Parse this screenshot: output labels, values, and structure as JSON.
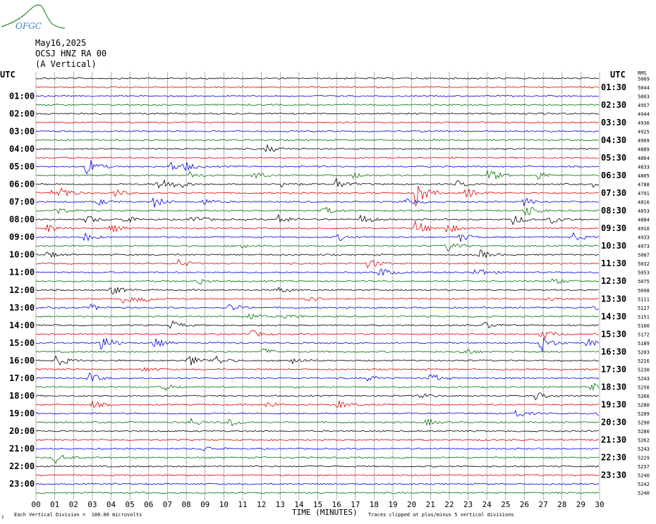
{
  "logo": {
    "text": "OFGC",
    "colors": {
      "text": "#3d7fc4",
      "mountain": "#2f8a3a"
    }
  },
  "header": {
    "date": "May16,2025",
    "station": "OCSJ HNZ RA 00",
    "component": "(A Vertical)"
  },
  "left_axis": {
    "title": "UTC",
    "labels": [
      "01:00",
      "02:00",
      "03:00",
      "04:00",
      "05:00",
      "06:00",
      "07:00",
      "08:00",
      "09:00",
      "10:00",
      "11:00",
      "12:00",
      "13:00",
      "14:00",
      "15:00",
      "16:00",
      "17:00",
      "18:00",
      "19:00",
      "20:00",
      "21:00",
      "22:00",
      "23:00"
    ]
  },
  "right_axis": {
    "title": "UTC",
    "labels": [
      "01:30",
      "02:30",
      "03:30",
      "04:30",
      "05:30",
      "06:30",
      "07:30",
      "08:30",
      "09:30",
      "10:30",
      "11:30",
      "12:30",
      "13:30",
      "14:30",
      "15:30",
      "16:30",
      "17:30",
      "18:30",
      "19:30",
      "20:30",
      "21:30",
      "22:30",
      "23:30"
    ],
    "rms_header": "RMS",
    "rms_values": [
      "5069",
      "5044",
      "5003",
      "4957",
      "4944",
      "4936",
      "4925",
      "4909",
      "4889",
      "4864",
      "4833",
      "4805",
      "4788",
      "4791",
      "4816",
      "4853",
      "4884",
      "4910",
      "4933",
      "4973",
      "5007",
      "5032",
      "5053",
      "5075",
      "5098",
      "5111",
      "5127",
      "5151",
      "5160",
      "5172",
      "5189",
      "5203",
      "5216",
      "5230",
      "5243",
      "5256",
      "5266",
      "5280",
      "5289",
      "5290",
      "5280",
      "5262",
      "5243",
      "5229",
      "5237",
      "5240",
      "5242",
      "5240"
    ]
  },
  "x_axis": {
    "title": "TIME (MINUTES)",
    "ticks": [
      "00",
      "01",
      "02",
      "03",
      "04",
      "05",
      "06",
      "07",
      "08",
      "09",
      "10",
      "11",
      "12",
      "13",
      "14",
      "15",
      "16",
      "17",
      "18",
      "19",
      "20",
      "21",
      "22",
      "23",
      "24",
      "25",
      "26",
      "27",
      "28",
      "29",
      "30"
    ]
  },
  "footer": {
    "scale_note": "Each Vertical Division =  100.00 microvolts",
    "clip_note": "Traces clipped at plus/minus 5 vertical divisions",
    "corner_mark": "z"
  },
  "colors": {
    "trace_cycle": [
      "#000000",
      "#e00000",
      "#0000e0",
      "#007000"
    ],
    "grid": "#808080",
    "background": "#ffffff"
  },
  "chart_data": {
    "type": "helicorder",
    "traces_per_hour": 2,
    "minutes_per_trace": 30,
    "trace_count": 48,
    "events": [
      {
        "trace": 8,
        "minute": 12.3,
        "amp": 6
      },
      {
        "trace": 10,
        "minute": 2.7,
        "amp": 14
      },
      {
        "trace": 10,
        "minute": 7.2,
        "amp": 8
      },
      {
        "trace": 10,
        "minute": 8.0,
        "amp": 5
      },
      {
        "trace": 11,
        "minute": 8.1,
        "amp": 6
      },
      {
        "trace": 11,
        "minute": 11.6,
        "amp": 6
      },
      {
        "trace": 11,
        "minute": 16.9,
        "amp": 4
      },
      {
        "trace": 11,
        "minute": 24.1,
        "amp": 10
      },
      {
        "trace": 11,
        "minute": 26.7,
        "amp": 6
      },
      {
        "trace": 12,
        "minute": 6.5,
        "amp": 11
      },
      {
        "trace": 12,
        "minute": 7.4,
        "amp": 9
      },
      {
        "trace": 12,
        "minute": 13.1,
        "amp": 6
      },
      {
        "trace": 12,
        "minute": 16.0,
        "amp": 8
      },
      {
        "trace": 12,
        "minute": 22.4,
        "amp": 5
      },
      {
        "trace": 12,
        "minute": 29.7,
        "amp": 6
      },
      {
        "trace": 13,
        "minute": 0.9,
        "amp": 10
      },
      {
        "trace": 13,
        "minute": 1.4,
        "amp": 6
      },
      {
        "trace": 13,
        "minute": 4.2,
        "amp": 6
      },
      {
        "trace": 13,
        "minute": 20.2,
        "amp": 22
      },
      {
        "trace": 13,
        "minute": 22.9,
        "amp": 8
      },
      {
        "trace": 14,
        "minute": 3.3,
        "amp": 5
      },
      {
        "trace": 14,
        "minute": 6.3,
        "amp": 8
      },
      {
        "trace": 14,
        "minute": 8.9,
        "amp": 5
      },
      {
        "trace": 14,
        "minute": 19.7,
        "amp": 6
      },
      {
        "trace": 14,
        "minute": 26.0,
        "amp": 6
      },
      {
        "trace": 15,
        "minute": 1.0,
        "amp": 6
      },
      {
        "trace": 15,
        "minute": 15.3,
        "amp": 6
      },
      {
        "trace": 15,
        "minute": 26.1,
        "amp": 10
      },
      {
        "trace": 16,
        "minute": 2.7,
        "amp": 7
      },
      {
        "trace": 16,
        "minute": 4.6,
        "amp": 7
      },
      {
        "trace": 16,
        "minute": 8.3,
        "amp": 7
      },
      {
        "trace": 16,
        "minute": 12.9,
        "amp": 8
      },
      {
        "trace": 16,
        "minute": 17.3,
        "amp": 8
      },
      {
        "trace": 16,
        "minute": 25.4,
        "amp": 8
      },
      {
        "trace": 16,
        "minute": 27.4,
        "amp": 6
      },
      {
        "trace": 17,
        "minute": 0.6,
        "amp": 7
      },
      {
        "trace": 17,
        "minute": 4.0,
        "amp": 6
      },
      {
        "trace": 17,
        "minute": 20.2,
        "amp": 12
      },
      {
        "trace": 17,
        "minute": 21.9,
        "amp": 7
      },
      {
        "trace": 18,
        "minute": 2.6,
        "amp": 6
      },
      {
        "trace": 18,
        "minute": 16.1,
        "amp": 5
      },
      {
        "trace": 18,
        "minute": 22.6,
        "amp": 6
      },
      {
        "trace": 18,
        "minute": 28.6,
        "amp": 6
      },
      {
        "trace": 19,
        "minute": 21.9,
        "amp": 8
      },
      {
        "trace": 19,
        "minute": 10.9,
        "amp": 5
      },
      {
        "trace": 20,
        "minute": 0.6,
        "amp": 5
      },
      {
        "trace": 20,
        "minute": 23.6,
        "amp": 7
      },
      {
        "trace": 21,
        "minute": 7.6,
        "amp": 6
      },
      {
        "trace": 21,
        "minute": 17.7,
        "amp": 8
      },
      {
        "trace": 22,
        "minute": 18.3,
        "amp": 8
      },
      {
        "trace": 22,
        "minute": 23.4,
        "amp": 8
      },
      {
        "trace": 23,
        "minute": 8.5,
        "amp": 6
      },
      {
        "trace": 23,
        "minute": 27.5,
        "amp": 6
      },
      {
        "trace": 24,
        "minute": 4.0,
        "amp": 8
      },
      {
        "trace": 24,
        "minute": 12.9,
        "amp": 5
      },
      {
        "trace": 25,
        "minute": 4.6,
        "amp": 8
      },
      {
        "trace": 25,
        "minute": 5.5,
        "amp": 9
      },
      {
        "trace": 25,
        "minute": 14.4,
        "amp": 6
      },
      {
        "trace": 25,
        "minute": 27.2,
        "amp": 5
      },
      {
        "trace": 26,
        "minute": 2.9,
        "amp": 5
      },
      {
        "trace": 26,
        "minute": 10.3,
        "amp": 6
      },
      {
        "trace": 26,
        "minute": 29.7,
        "amp": 6
      },
      {
        "trace": 27,
        "minute": 11.3,
        "amp": 6
      },
      {
        "trace": 27,
        "minute": 13.3,
        "amp": 5
      },
      {
        "trace": 28,
        "minute": 7.2,
        "amp": 7
      },
      {
        "trace": 28,
        "minute": 23.9,
        "amp": 5
      },
      {
        "trace": 29,
        "minute": 11.5,
        "amp": 5
      },
      {
        "trace": 29,
        "minute": 26.9,
        "amp": 8
      },
      {
        "trace": 30,
        "minute": 3.5,
        "amp": 14
      },
      {
        "trace": 30,
        "minute": 6.3,
        "amp": 7
      },
      {
        "trace": 30,
        "minute": 26.9,
        "amp": 13
      },
      {
        "trace": 30,
        "minute": 29.3,
        "amp": 6
      },
      {
        "trace": 31,
        "minute": 12.1,
        "amp": 5
      },
      {
        "trace": 31,
        "minute": 22.7,
        "amp": 6
      },
      {
        "trace": 32,
        "minute": 1.1,
        "amp": 9
      },
      {
        "trace": 32,
        "minute": 8.1,
        "amp": 10
      },
      {
        "trace": 32,
        "minute": 9.5,
        "amp": 8
      },
      {
        "trace": 32,
        "minute": 13.6,
        "amp": 7
      },
      {
        "trace": 33,
        "minute": 5.7,
        "amp": 4
      },
      {
        "trace": 34,
        "minute": 2.8,
        "amp": 8
      },
      {
        "trace": 34,
        "minute": 17.7,
        "amp": 5
      },
      {
        "trace": 34,
        "minute": 21.0,
        "amp": 7
      },
      {
        "trace": 35,
        "minute": 6.8,
        "amp": 5
      },
      {
        "trace": 35,
        "minute": 29.6,
        "amp": 6
      },
      {
        "trace": 36,
        "minute": 20.5,
        "amp": 4
      },
      {
        "trace": 36,
        "minute": 26.6,
        "amp": 6
      },
      {
        "trace": 37,
        "minute": 3.0,
        "amp": 5
      },
      {
        "trace": 37,
        "minute": 12.3,
        "amp": 6
      },
      {
        "trace": 37,
        "minute": 16.1,
        "amp": 7
      },
      {
        "trace": 38,
        "minute": 25.5,
        "amp": 7
      },
      {
        "trace": 38,
        "minute": 29.8,
        "amp": 4
      },
      {
        "trace": 39,
        "minute": 8.2,
        "amp": 7
      },
      {
        "trace": 39,
        "minute": 10.3,
        "amp": 6
      },
      {
        "trace": 39,
        "minute": 20.8,
        "amp": 5
      },
      {
        "trace": 42,
        "minute": 8.9,
        "amp": 4
      },
      {
        "trace": 43,
        "minute": 1.0,
        "amp": 8
      }
    ]
  }
}
